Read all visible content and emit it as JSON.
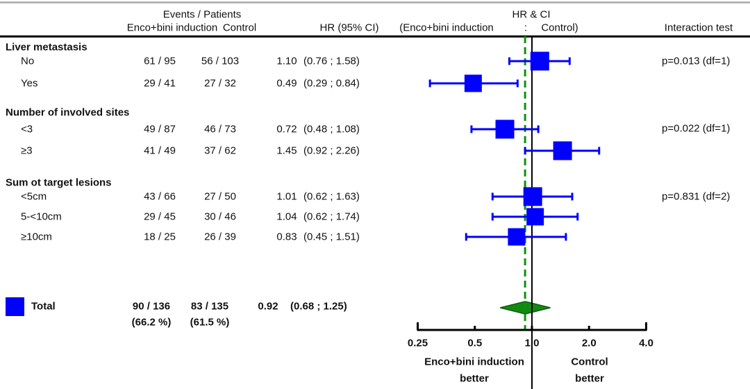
{
  "header": {
    "events_patients": "Events / Patients",
    "treatment_col": "Enco+bini induction",
    "control_col": "Control",
    "hr_ci_col": "HR (95% CI)",
    "plot_col_title": "HR & CI",
    "plot_col_sub_left": "(Enco+bini induction",
    "plot_col_sub_sep": ":",
    "plot_col_sub_right": "Control)",
    "interaction_col": "Interaction test"
  },
  "chart_data": {
    "type": "forest",
    "title": "",
    "x_axis": {
      "scale": "log2",
      "range": [
        0.25,
        4.0
      ],
      "ticks": [
        0.25,
        0.5,
        1.0,
        2.0,
        4.0
      ],
      "tick_labels": [
        "0.25",
        "0.5",
        "1.0",
        "2.0",
        "4.0"
      ]
    },
    "reference_line": 1.0,
    "overall_hr_line": 0.92,
    "groups": [
      {
        "label": "Liver metastasis",
        "interaction_p": "p=0.013 (df=1)",
        "rows": [
          {
            "label": "No",
            "events_treatment": "61 / 95",
            "events_control": "56 / 103",
            "hr": 1.1,
            "hr_text": "1.10",
            "ci_low": 0.76,
            "ci_high": 1.58,
            "ci_text": "(0.76 ; 1.58)"
          },
          {
            "label": "Yes",
            "events_treatment": "29 / 41",
            "events_control": "27 / 32",
            "hr": 0.49,
            "hr_text": "0.49",
            "ci_low": 0.29,
            "ci_high": 0.84,
            "ci_text": "(0.29 ; 0.84)"
          }
        ]
      },
      {
        "label": "Number of involved sites",
        "interaction_p": "p=0.022 (df=1)",
        "rows": [
          {
            "label": "<3",
            "events_treatment": "49 / 87",
            "events_control": "46 / 73",
            "hr": 0.72,
            "hr_text": "0.72",
            "ci_low": 0.48,
            "ci_high": 1.08,
            "ci_text": "(0.48 ; 1.08)"
          },
          {
            "label": "≥3",
            "events_treatment": "41 / 49",
            "events_control": "37 / 62",
            "hr": 1.45,
            "hr_text": "1.45",
            "ci_low": 0.92,
            "ci_high": 2.26,
            "ci_text": "(0.92 ; 2.26)"
          }
        ]
      },
      {
        "label": "Sum ot target lesions",
        "interaction_p": "p=0.831 (df=2)",
        "rows": [
          {
            "label": "<5cm",
            "events_treatment": "43 / 66",
            "events_control": "27 / 50",
            "hr": 1.01,
            "hr_text": "1.01",
            "ci_low": 0.62,
            "ci_high": 1.63,
            "ci_text": "(0.62 ; 1.63)"
          },
          {
            "label": "5-<10cm",
            "events_treatment": "29 / 45",
            "events_control": "30 / 46",
            "hr": 1.04,
            "hr_text": "1.04",
            "ci_low": 0.62,
            "ci_high": 1.74,
            "ci_text": "(0.62 ; 1.74)"
          },
          {
            "label": "≥10cm",
            "events_treatment": "18 / 25",
            "events_control": "26 / 39",
            "hr": 0.83,
            "hr_text": "0.83",
            "ci_low": 0.45,
            "ci_high": 1.51,
            "ci_text": "(0.45 ; 1.51)"
          }
        ]
      }
    ],
    "total": {
      "label": "Total",
      "events_treatment": "90 / 136",
      "events_treatment_pct": "(66.2 %)",
      "events_control": "83 / 135",
      "events_control_pct": "(61.5 %)",
      "hr": 0.92,
      "hr_text": "0.92",
      "ci_low": 0.68,
      "ci_high": 1.25,
      "ci_text": "(0.68 ; 1.25)"
    },
    "footer": {
      "treatment_better_line1": "Enco+bini induction",
      "treatment_better_line2": "better",
      "control_better_line1": "Control",
      "control_better_line2": "better"
    }
  },
  "colors": {
    "marker_blue": "#0000ff",
    "diamond_green": "#128a12",
    "diamond_edge": "#0b5e0b",
    "dashed_green": "#0f8f0f",
    "axis_black": "#000000",
    "top_rule_gray": "#b5b5b5"
  }
}
